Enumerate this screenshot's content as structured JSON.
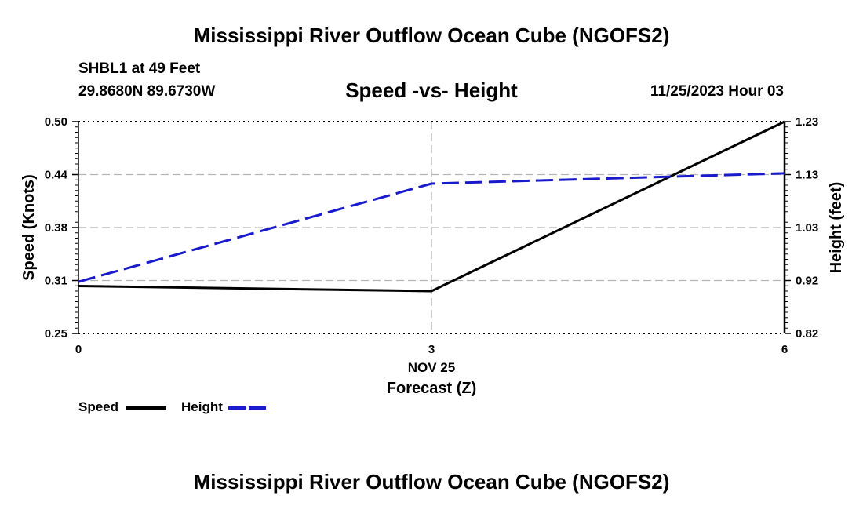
{
  "page": {
    "title": "Mississippi River Outflow Ocean Cube (NGOFS2)",
    "footer_title": "Mississippi River Outflow Ocean Cube (NGOFS2)"
  },
  "station": {
    "name": "SHBL1 at 49 Feet",
    "coords": "29.8680N  89.6730W",
    "datetime": "11/25/2023 Hour 03"
  },
  "legend": {
    "speed_label": "Speed",
    "height_label": "Height"
  },
  "colors": {
    "speed": "#000000",
    "height": "#1a1acd",
    "grid": "#b4b4b4"
  },
  "chart_data": {
    "type": "line",
    "title": "Speed -vs- Height",
    "xlabel": "Forecast (Z)",
    "x_date_label": "NOV 25",
    "ylabel_left": "Speed (Knots)",
    "ylabel_right": "Height (feet)",
    "x": [
      0,
      3,
      6
    ],
    "x_ticks": [
      "0",
      "3",
      "6"
    ],
    "xlim": [
      0,
      6
    ],
    "ylim_left": [
      0.25,
      0.5
    ],
    "ylim_right": [
      0.82,
      1.23
    ],
    "yticks_left": [
      "0.25",
      "0.31",
      "0.38",
      "0.44",
      "0.50"
    ],
    "yticks_right": [
      "0.82",
      "0.92",
      "1.03",
      "1.13",
      "1.23"
    ],
    "grid": true,
    "series": [
      {
        "name": "Speed",
        "axis": "left",
        "style": "solid",
        "values": [
          0.306,
          0.3,
          0.5
        ]
      },
      {
        "name": "Height",
        "axis": "right",
        "style": "dashed",
        "values": [
          0.92,
          1.11,
          1.13
        ]
      }
    ]
  }
}
